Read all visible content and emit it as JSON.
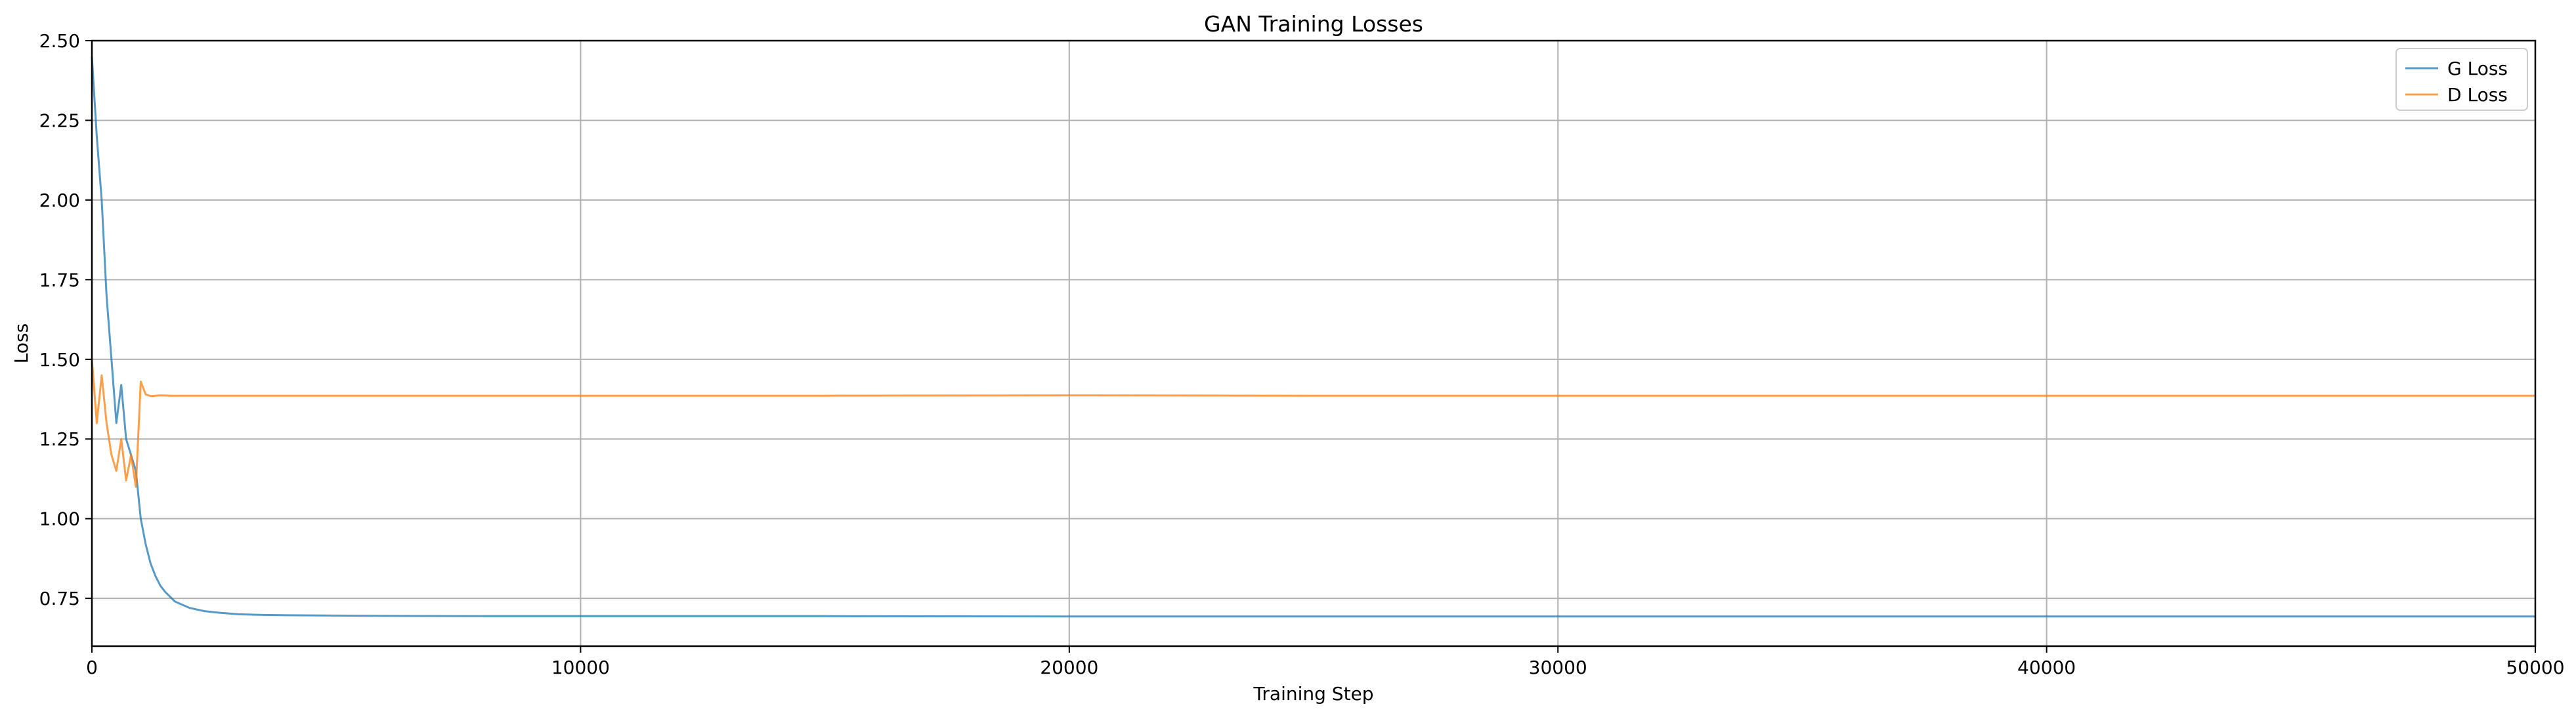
{
  "chart_data": {
    "type": "line",
    "title": "GAN Training Losses",
    "xlabel": "Training Step",
    "ylabel": "Loss",
    "xlim": [
      0,
      50000
    ],
    "ylim": [
      0.6,
      2.5
    ],
    "x_ticks": [
      0,
      10000,
      20000,
      30000,
      40000,
      50000
    ],
    "x_tick_labels": [
      "0",
      "10000",
      "20000",
      "30000",
      "40000",
      "50000"
    ],
    "y_ticks": [
      0.75,
      1.0,
      1.25,
      1.5,
      1.75,
      2.0,
      2.25,
      2.5
    ],
    "y_tick_labels": [
      "0.75",
      "1.00",
      "1.25",
      "1.50",
      "1.75",
      "2.00",
      "2.25",
      "2.50"
    ],
    "grid": true,
    "legend_position": "top-right",
    "series": [
      {
        "name": "G Loss",
        "color": "#1f77b4",
        "x": [
          0,
          100,
          200,
          300,
          400,
          500,
          600,
          700,
          800,
          900,
          1000,
          1100,
          1200,
          1300,
          1400,
          1500,
          1700,
          2000,
          2300,
          2600,
          3000,
          3500,
          4000,
          5000,
          6000,
          8000,
          10000,
          15000,
          20000,
          25000,
          30000,
          35000,
          40000,
          45000,
          50000
        ],
        "y": [
          2.45,
          2.2,
          2.0,
          1.7,
          1.5,
          1.3,
          1.42,
          1.25,
          1.2,
          1.15,
          1.0,
          0.92,
          0.86,
          0.82,
          0.79,
          0.77,
          0.74,
          0.72,
          0.71,
          0.705,
          0.7,
          0.698,
          0.697,
          0.696,
          0.695,
          0.694,
          0.694,
          0.694,
          0.693,
          0.693,
          0.693,
          0.693,
          0.693,
          0.693,
          0.693
        ]
      },
      {
        "name": "D Loss",
        "color": "#ff7f0e",
        "x": [
          0,
          100,
          200,
          300,
          400,
          500,
          600,
          700,
          800,
          900,
          1000,
          1100,
          1200,
          1400,
          1600,
          2000,
          3000,
          5000,
          10000,
          15000,
          20000,
          25000,
          30000,
          35000,
          40000,
          45000,
          50000
        ],
        "y": [
          1.5,
          1.3,
          1.45,
          1.3,
          1.2,
          1.15,
          1.25,
          1.12,
          1.2,
          1.1,
          1.43,
          1.39,
          1.385,
          1.387,
          1.386,
          1.386,
          1.386,
          1.386,
          1.386,
          1.386,
          1.387,
          1.386,
          1.386,
          1.386,
          1.386,
          1.386,
          1.386
        ]
      }
    ]
  }
}
